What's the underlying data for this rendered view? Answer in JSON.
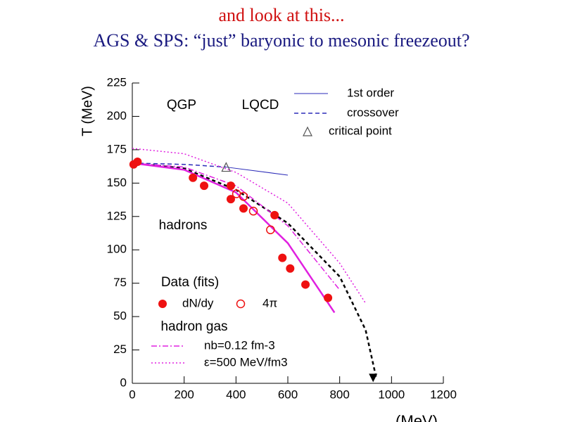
{
  "header": {
    "title": "and look at this...",
    "subtitle": "AGS & SPS: “just” baryonic to mesonic freezeout?"
  },
  "chart_data": {
    "type": "line",
    "x_label": "(MeV)",
    "y_label": "T (MeV)",
    "annotations": [
      "QGP",
      "LQCD",
      "hadrons",
      "Data (fits)",
      "hadron gas"
    ],
    "xlim": [
      0,
      1200
    ],
    "xticks": [
      0,
      200,
      400,
      600,
      800,
      1000,
      1200
    ],
    "ylim": [
      0,
      225
    ],
    "yticks": [
      0,
      25,
      50,
      75,
      100,
      125,
      150,
      175,
      200,
      225
    ],
    "series": [
      {
        "name": "1st order",
        "color": "#2b2bb8",
        "style": "solid",
        "x": [
          362,
          600
        ],
        "values": [
          162,
          156
        ]
      },
      {
        "name": "crossover",
        "color": "#2b2bb8",
        "style": "dashed",
        "x": [
          0,
          200,
          362
        ],
        "values": [
          165,
          164,
          162
        ]
      },
      {
        "name": "critical point",
        "color": "#555555",
        "style": "triangle",
        "x": [
          362
        ],
        "values": [
          162
        ]
      },
      {
        "color": "#000000",
        "style": "dashed-thick",
        "x": [
          0,
          200,
          400,
          600,
          800,
          900,
          940
        ],
        "values": [
          165,
          161,
          145,
          120,
          80,
          40,
          5
        ]
      },
      {
        "color": "#000000",
        "style": "triangle-down",
        "x": [
          929
        ],
        "values": [
          4
        ]
      },
      {
        "color": "#e020e0",
        "style": "solid-thick",
        "x": [
          0,
          200,
          400,
          600,
          780
        ],
        "values": [
          165,
          160,
          143,
          105,
          53
        ]
      },
      {
        "name": "nb=0.12 fm-3",
        "color": "#e020e0",
        "style": "dotdash",
        "x": [
          0,
          200,
          400,
          600,
          800
        ],
        "values": [
          165,
          162,
          148,
          118,
          70
        ]
      },
      {
        "name": "ε=500 MeV/fm3",
        "color": "#e020e0",
        "style": "dotted",
        "x": [
          0,
          200,
          400,
          600,
          800,
          900
        ],
        "values": [
          176,
          172,
          158,
          135,
          90,
          60
        ]
      },
      {
        "name": "dN/dy",
        "color": "#ee1111",
        "style": "filled",
        "x": [
          5,
          20,
          234,
          277,
          380,
          380,
          429,
          549,
          579,
          609,
          668,
          755
        ],
        "values": [
          164,
          166,
          154,
          148,
          148,
          138,
          131,
          126,
          94,
          86,
          74,
          64
        ]
      },
      {
        "name": "4π",
        "color": "#ee1111",
        "style": "open",
        "x": [
          402,
          429,
          467,
          533
        ],
        "values": [
          142,
          140,
          129,
          115
        ]
      }
    ]
  }
}
